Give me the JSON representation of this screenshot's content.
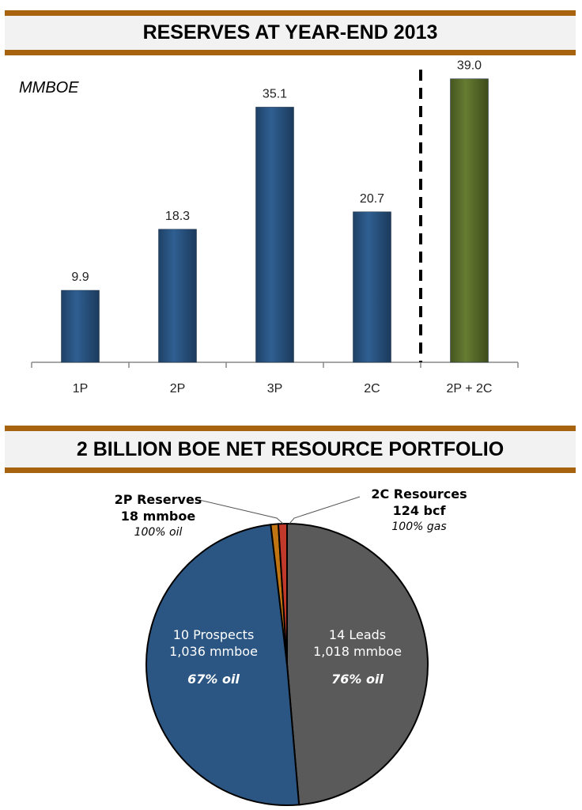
{
  "chart_data": [
    {
      "type": "bar",
      "title": "RESERVES AT YEAR-END 2013",
      "ylabel": "MMBOE",
      "categories": [
        "1P",
        "2P",
        "3P",
        "2C",
        "2P + 2C"
      ],
      "values": [
        9.9,
        18.3,
        35.1,
        20.7,
        39.0
      ],
      "data_labels": [
        "9.9",
        "18.3",
        "35.1",
        "20.7",
        "39.0"
      ],
      "colors": [
        "#2b5683",
        "#2b5683",
        "#2b5683",
        "#2b5683",
        "#5b6f2b"
      ],
      "ylim": [
        0,
        40
      ],
      "separator": "dashed line before 2P + 2C",
      "grid": false
    },
    {
      "type": "pie",
      "title": "2 BILLION BOE NET RESOURCE PORTFOLIO",
      "slices": [
        {
          "name": "14 Leads",
          "value": 1018,
          "lines": [
            "14 Leads",
            "1,018 mmboe"
          ],
          "note": "76% oil",
          "color": "#5a5a5a"
        },
        {
          "name": "10 Prospects",
          "value": 1036,
          "lines": [
            "10 Prospects",
            "1,036 mmboe"
          ],
          "note": "67% oil",
          "color": "#2b5683"
        },
        {
          "name": "2P Reserves",
          "value": 18,
          "lines": [
            "2P Reserves",
            "18 mmboe"
          ],
          "note": "100% oil",
          "color": "#c07512"
        },
        {
          "name": "2C Resources",
          "value": 20.7,
          "lines": [
            "2C Resources",
            "124 bcf"
          ],
          "note": "100% gas",
          "color": "#c0392b"
        }
      ]
    }
  ]
}
